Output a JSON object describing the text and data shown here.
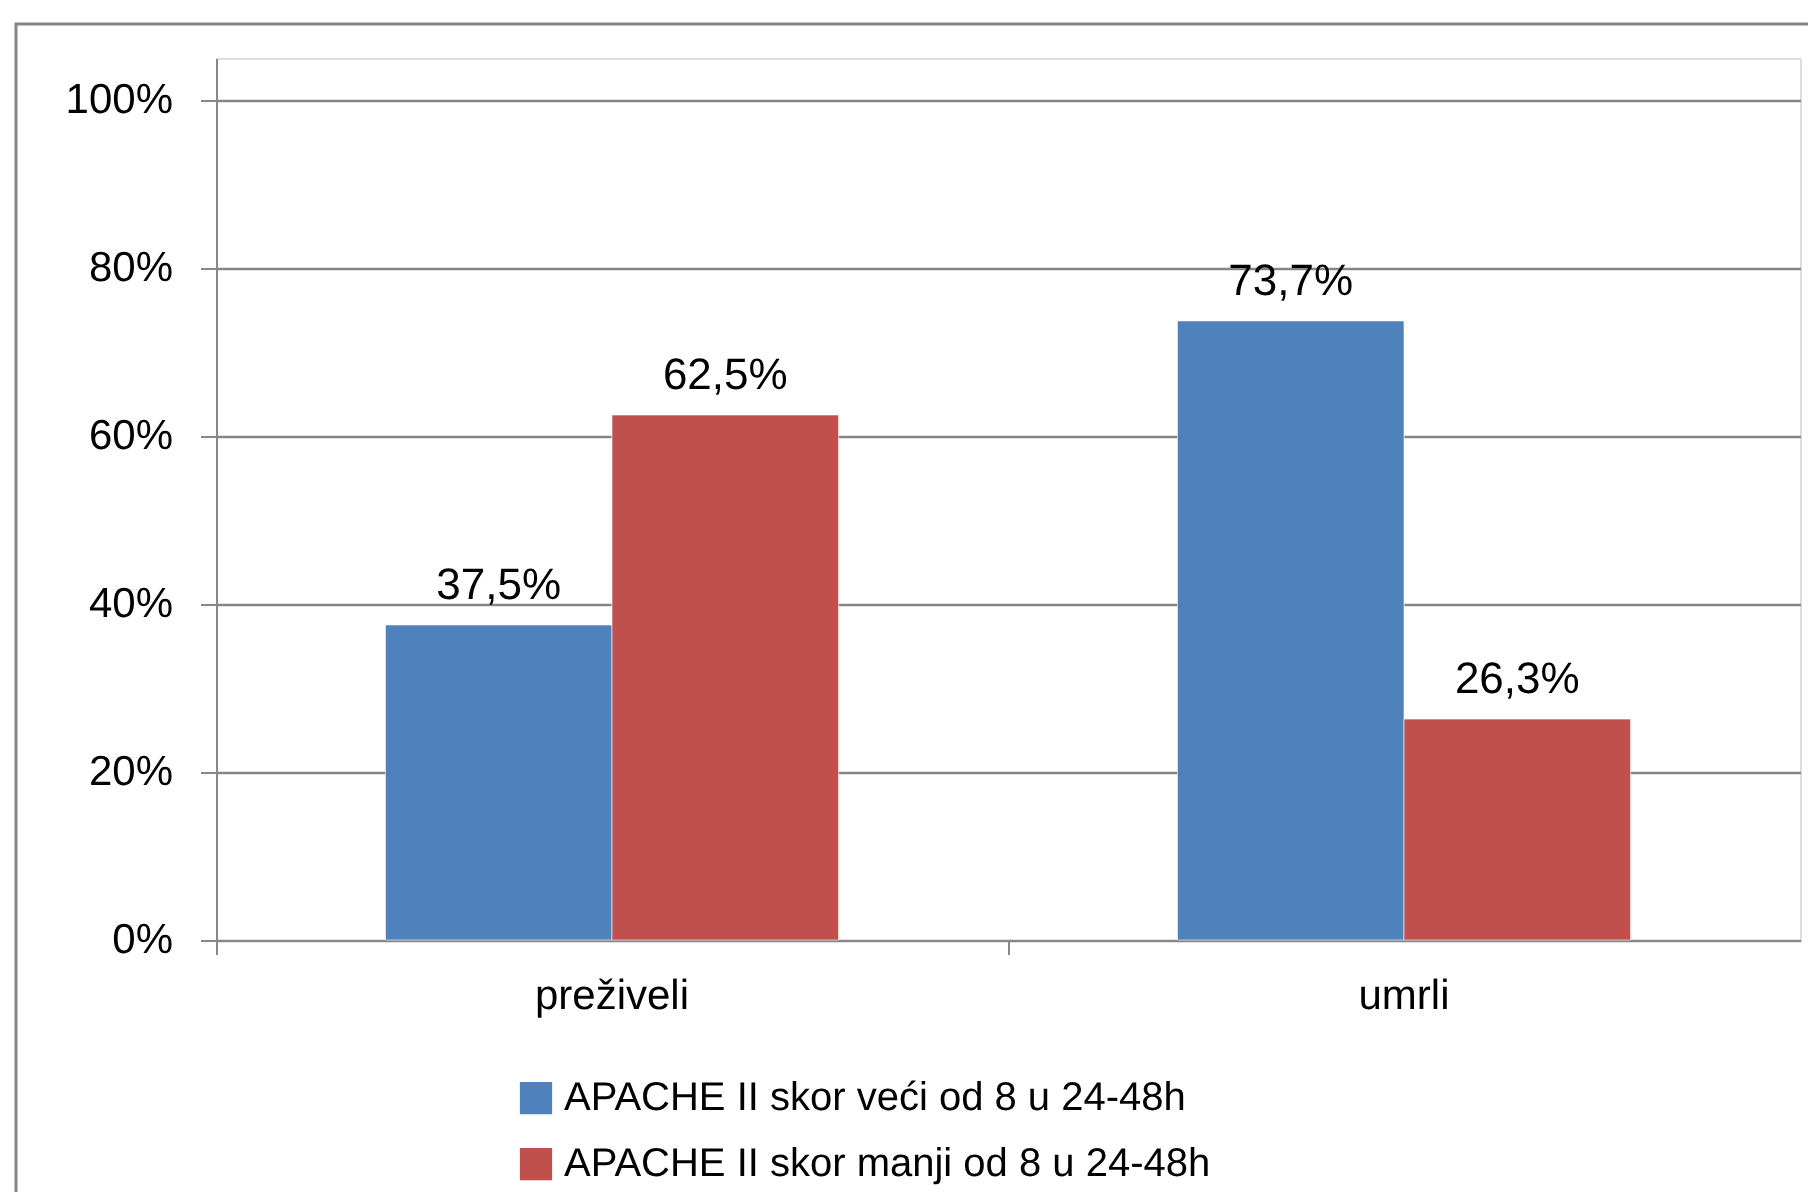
{
  "chart_data": {
    "type": "bar",
    "categories": [
      "preživeli",
      "umrli"
    ],
    "series": [
      {
        "name": "APACHE II skor veći od 8 u 24-48h",
        "color": "#4f81bd",
        "values": [
          37.5,
          73.7
        ],
        "value_labels": [
          "37,5%",
          "73,7%"
        ]
      },
      {
        "name": "APACHE II skor manji od 8 u 24-48h",
        "color": "#c0504d",
        "values": [
          62.5,
          26.3
        ],
        "value_labels": [
          "62,5%",
          "26,3%"
        ]
      }
    ],
    "ylim": [
      0,
      105
    ],
    "yticks": [
      {
        "value": 0,
        "label": "0%"
      },
      {
        "value": 20,
        "label": "20%"
      },
      {
        "value": 40,
        "label": "40%"
      },
      {
        "value": 60,
        "label": "60%"
      },
      {
        "value": 80,
        "label": "80%"
      },
      {
        "value": 100,
        "label": "100%"
      }
    ],
    "grid": "y",
    "legend": "bottom"
  }
}
